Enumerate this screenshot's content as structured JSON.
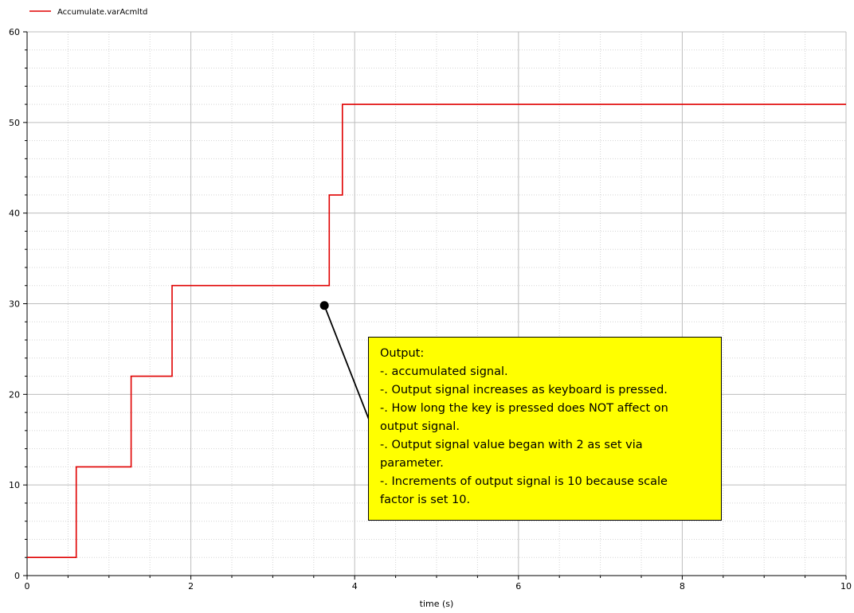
{
  "chart_data": {
    "type": "line",
    "step": true,
    "xlabel": "time (s)",
    "ylabel": "",
    "xlim": [
      0,
      10
    ],
    "ylim": [
      0,
      60
    ],
    "x_ticks": [
      "0",
      "2",
      "4",
      "6",
      "8",
      "10"
    ],
    "y_ticks": [
      "0",
      "10",
      "20",
      "30",
      "40",
      "50",
      "60"
    ],
    "grid": true,
    "legend_position": "top-left",
    "series": [
      {
        "name": "Accumulate.varAcmltd",
        "color": "#e00000",
        "x": [
          0,
          0.6,
          0.6,
          1.27,
          1.27,
          1.77,
          1.77,
          3.69,
          3.69,
          3.85,
          3.85,
          10
        ],
        "y": [
          2,
          2,
          12,
          12,
          22,
          22,
          32,
          32,
          42,
          42,
          52,
          52
        ]
      }
    ],
    "annotations": [
      {
        "point": [
          3.63,
          29.8
        ],
        "background": "#ffff00",
        "lines": [
          "Output:",
          "-. accumulated signal.",
          "-. Output signal increases as keyboard is pressed.",
          "-. How long the key is pressed does NOT affect on",
          "output signal.",
          "-. Output signal value began with 2 as set via",
          "parameter.",
          "-. Increments of output signal is 10 because scale",
          "factor is set 10."
        ]
      }
    ]
  }
}
